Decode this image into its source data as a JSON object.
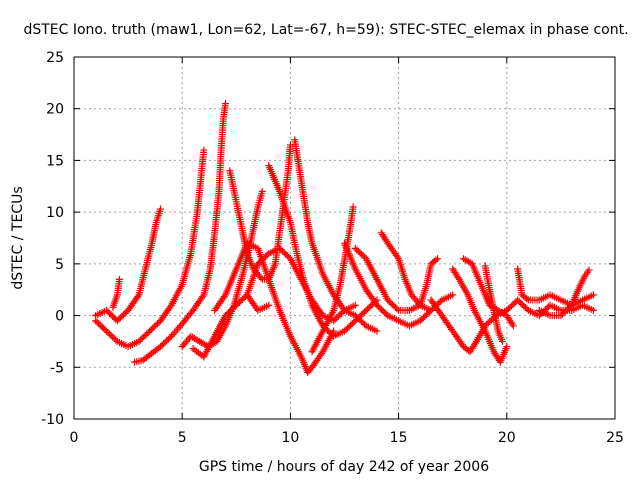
{
  "chart_data": {
    "type": "scatter",
    "title": "dSTEC Iono. truth (maw1, Lon=62, Lat=-67, h=59): STEC-STEC_elemax in phase cont.",
    "xlabel": "GPS time / hours of day 242 of year 2006",
    "ylabel": "dSTEC  / TECUs",
    "xlim": [
      0,
      25
    ],
    "ylim": [
      -10,
      25
    ],
    "xticks": [
      0,
      5,
      10,
      15,
      20,
      25
    ],
    "yticks": [
      -10,
      -5,
      0,
      5,
      10,
      15,
      20,
      25
    ],
    "grid": true,
    "marker": "+",
    "color": "#ff0000",
    "series": [
      {
        "points": [
          [
            1.0,
            -0.5
          ],
          [
            1.5,
            -1.5
          ],
          [
            2.0,
            -2.5
          ],
          [
            2.5,
            -3.0
          ],
          [
            3.0,
            -2.5
          ],
          [
            3.5,
            -1.5
          ],
          [
            4.0,
            -0.5
          ],
          [
            4.5,
            1.0
          ],
          [
            5.0,
            3.0
          ],
          [
            5.4,
            6.0
          ],
          [
            5.7,
            10.0
          ],
          [
            5.9,
            14.0
          ],
          [
            6.0,
            16.0
          ]
        ]
      },
      {
        "points": [
          [
            1.0,
            0.0
          ],
          [
            1.5,
            0.5
          ],
          [
            2.0,
            -0.5
          ],
          [
            2.5,
            0.5
          ],
          [
            3.0,
            2.0
          ],
          [
            3.3,
            4.5
          ],
          [
            3.6,
            7.0
          ],
          [
            3.8,
            9.0
          ],
          [
            4.0,
            10.3
          ]
        ]
      },
      {
        "points": [
          [
            2.8,
            -4.5
          ],
          [
            3.2,
            -4.3
          ],
          [
            3.5,
            -3.8
          ],
          [
            4.0,
            -3.0
          ],
          [
            4.5,
            -2.0
          ],
          [
            5.0,
            -0.8
          ],
          [
            5.5,
            0.5
          ],
          [
            6.0,
            2.0
          ],
          [
            6.3,
            4.5
          ],
          [
            6.5,
            8.0
          ],
          [
            6.7,
            12.0
          ],
          [
            6.8,
            16.0
          ],
          [
            6.9,
            19.0
          ],
          [
            7.0,
            20.5
          ]
        ]
      },
      {
        "points": [
          [
            1.8,
            0.8
          ],
          [
            2.0,
            2.0
          ],
          [
            2.1,
            3.5
          ]
        ]
      },
      {
        "points": [
          [
            5.0,
            -3.0
          ],
          [
            5.4,
            -2.0
          ],
          [
            5.8,
            -2.5
          ],
          [
            6.2,
            -3.0
          ],
          [
            6.6,
            -2.5
          ],
          [
            7.0,
            -1.0
          ],
          [
            7.4,
            1.0
          ],
          [
            7.8,
            4.0
          ],
          [
            8.1,
            6.5
          ],
          [
            8.3,
            8.5
          ],
          [
            8.5,
            10.5
          ],
          [
            8.7,
            12.0
          ]
        ]
      },
      {
        "points": [
          [
            5.5,
            -3.2
          ],
          [
            6.0,
            -4.0
          ],
          [
            6.5,
            -2.0
          ],
          [
            7.0,
            0.0
          ],
          [
            7.5,
            1.0
          ],
          [
            8.0,
            2.0
          ],
          [
            8.5,
            0.5
          ],
          [
            9.0,
            1.0
          ]
        ]
      },
      {
        "points": [
          [
            7.2,
            14.0
          ],
          [
            7.5,
            11.0
          ],
          [
            7.8,
            8.0
          ],
          [
            8.0,
            6.0
          ],
          [
            8.3,
            4.5
          ],
          [
            8.7,
            3.5
          ],
          [
            9.0,
            3.5
          ],
          [
            9.3,
            5.0
          ],
          [
            9.5,
            8.0
          ],
          [
            9.7,
            11.0
          ],
          [
            9.9,
            14.0
          ],
          [
            10.0,
            16.5
          ]
        ]
      },
      {
        "points": [
          [
            6.5,
            0.5
          ],
          [
            7.0,
            2.0
          ],
          [
            7.5,
            4.5
          ],
          [
            8.0,
            7.0
          ],
          [
            8.5,
            6.5
          ],
          [
            9.0,
            3.5
          ],
          [
            9.5,
            0.5
          ],
          [
            10.0,
            -2.0
          ],
          [
            10.5,
            -4.0
          ],
          [
            10.8,
            -5.5
          ],
          [
            11.0,
            -5.0
          ],
          [
            11.5,
            -3.5
          ],
          [
            12.0,
            -1.5
          ]
        ]
      },
      {
        "points": [
          [
            8.0,
            2.0
          ],
          [
            8.5,
            5.0
          ],
          [
            9.0,
            6.0
          ],
          [
            9.5,
            6.5
          ],
          [
            10.0,
            5.5
          ],
          [
            10.5,
            3.5
          ],
          [
            11.0,
            1.5
          ],
          [
            11.5,
            0.0
          ],
          [
            12.0,
            -0.5
          ],
          [
            12.5,
            0.5
          ],
          [
            13.0,
            1.0
          ]
        ]
      },
      {
        "points": [
          [
            9.0,
            14.5
          ],
          [
            9.5,
            12.0
          ],
          [
            10.0,
            9.0
          ],
          [
            10.3,
            6.0
          ],
          [
            10.6,
            3.5
          ],
          [
            11.0,
            1.0
          ],
          [
            11.5,
            -1.0
          ],
          [
            12.0,
            -2.0
          ],
          [
            12.5,
            -1.5
          ],
          [
            13.0,
            -0.5
          ],
          [
            13.5,
            0.5
          ],
          [
            14.0,
            1.5
          ]
        ]
      },
      {
        "points": [
          [
            10.2,
            17.0
          ],
          [
            10.5,
            13.0
          ],
          [
            10.8,
            9.0
          ],
          [
            11.0,
            7.0
          ],
          [
            11.5,
            4.0
          ],
          [
            12.0,
            2.0
          ],
          [
            12.5,
            0.5
          ],
          [
            13.0,
            0.0
          ],
          [
            13.5,
            -1.0
          ],
          [
            14.0,
            -1.5
          ]
        ]
      },
      {
        "points": [
          [
            11.0,
            -3.5
          ],
          [
            11.5,
            -1.5
          ],
          [
            12.0,
            0.5
          ],
          [
            12.3,
            3.0
          ],
          [
            12.6,
            6.5
          ],
          [
            12.8,
            9.0
          ],
          [
            12.9,
            10.5
          ]
        ]
      },
      {
        "points": [
          [
            12.5,
            7.0
          ],
          [
            13.0,
            4.5
          ],
          [
            13.5,
            2.5
          ],
          [
            14.0,
            1.0
          ],
          [
            14.5,
            0.0
          ],
          [
            15.0,
            -0.5
          ],
          [
            15.5,
            -1.0
          ],
          [
            16.0,
            -0.5
          ],
          [
            16.5,
            0.5
          ]
        ]
      },
      {
        "points": [
          [
            13.0,
            6.5
          ],
          [
            13.5,
            5.5
          ],
          [
            14.0,
            3.5
          ],
          [
            14.5,
            1.5
          ],
          [
            15.0,
            0.5
          ],
          [
            15.5,
            0.5
          ],
          [
            16.0,
            1.0
          ],
          [
            16.3,
            3.0
          ],
          [
            16.5,
            5.0
          ],
          [
            16.8,
            5.5
          ]
        ]
      },
      {
        "points": [
          [
            14.2,
            8.0
          ],
          [
            14.5,
            7.0
          ],
          [
            15.0,
            5.5
          ],
          [
            15.3,
            3.5
          ],
          [
            15.6,
            2.0
          ],
          [
            16.0,
            1.0
          ],
          [
            16.5,
            0.5
          ],
          [
            17.0,
            1.5
          ],
          [
            17.5,
            2.0
          ]
        ]
      },
      {
        "points": [
          [
            16.5,
            1.5
          ],
          [
            17.0,
            0.0
          ],
          [
            17.5,
            -1.5
          ],
          [
            18.0,
            -3.0
          ],
          [
            18.3,
            -3.5
          ],
          [
            18.6,
            -2.5
          ],
          [
            19.0,
            -1.0
          ],
          [
            19.5,
            0.0
          ],
          [
            20.0,
            0.5
          ]
        ]
      },
      {
        "points": [
          [
            17.5,
            4.5
          ],
          [
            17.8,
            3.5
          ],
          [
            18.2,
            2.0
          ],
          [
            18.5,
            0.5
          ],
          [
            19.0,
            -1.5
          ],
          [
            19.4,
            -3.5
          ],
          [
            19.7,
            -4.5
          ],
          [
            20.0,
            -3.0
          ]
        ]
      },
      {
        "points": [
          [
            18.0,
            5.5
          ],
          [
            18.4,
            5.0
          ],
          [
            18.8,
            3.0
          ],
          [
            19.2,
            1.0
          ],
          [
            19.6,
            0.5
          ],
          [
            20.0,
            0.0
          ],
          [
            20.3,
            -1.0
          ]
        ]
      },
      {
        "points": [
          [
            19.0,
            4.8
          ],
          [
            19.2,
            2.5
          ],
          [
            19.4,
            0.5
          ],
          [
            19.6,
            -1.5
          ],
          [
            19.8,
            -2.5
          ]
        ]
      },
      {
        "points": [
          [
            20.0,
            0.5
          ],
          [
            20.5,
            1.5
          ],
          [
            21.0,
            0.5
          ],
          [
            21.5,
            0.0
          ],
          [
            22.0,
            1.0
          ],
          [
            22.5,
            0.5
          ],
          [
            23.0,
            0.5
          ],
          [
            23.5,
            1.0
          ],
          [
            24.0,
            0.5
          ]
        ]
      },
      {
        "points": [
          [
            20.5,
            4.5
          ],
          [
            20.7,
            2.0
          ],
          [
            21.0,
            1.5
          ],
          [
            21.5,
            1.5
          ],
          [
            22.0,
            2.0
          ],
          [
            22.5,
            1.5
          ],
          [
            23.0,
            1.0
          ],
          [
            23.5,
            1.5
          ],
          [
            24.0,
            2.0
          ]
        ]
      },
      {
        "points": [
          [
            21.5,
            0.5
          ],
          [
            22.0,
            0.0
          ],
          [
            22.5,
            0.0
          ],
          [
            23.0,
            1.0
          ],
          [
            23.3,
            2.5
          ],
          [
            23.6,
            3.8
          ],
          [
            23.8,
            4.4
          ]
        ]
      }
    ]
  }
}
